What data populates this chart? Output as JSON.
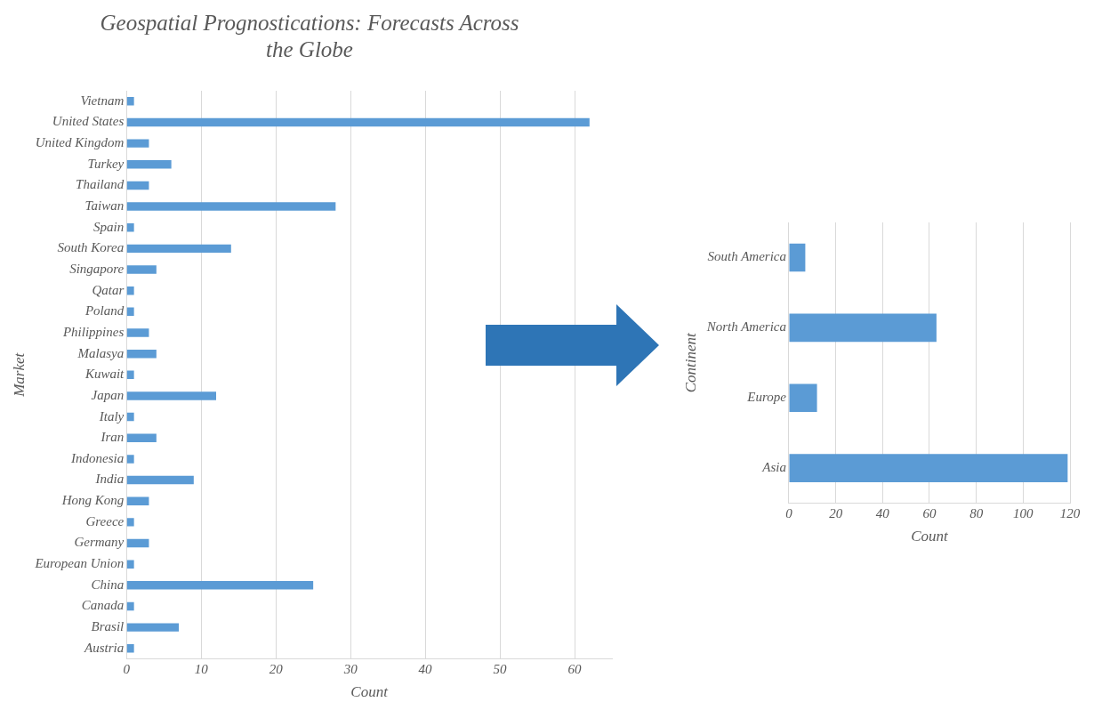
{
  "chart_data": [
    {
      "type": "bar",
      "title": "Geospatial Prognostications: Forecasts Across the Globe",
      "orientation": "horizontal",
      "xlabel": "Count",
      "ylabel": "Market",
      "categories": [
        "Vietnam",
        "United States",
        "United Kingdom",
        "Turkey",
        "Thailand",
        "Taiwan",
        "Spain",
        "South Korea",
        "Singapore",
        "Qatar",
        "Poland",
        "Philippines",
        "Malasya",
        "Kuwait",
        "Japan",
        "Italy",
        "Iran",
        "Indonesia",
        "India",
        "Hong Kong",
        "Greece",
        "Germany",
        "European Union",
        "China",
        "Canada",
        "Brasil",
        "Austria"
      ],
      "values": [
        1,
        62,
        3,
        6,
        3,
        28,
        1,
        14,
        4,
        1,
        1,
        3,
        4,
        1,
        12,
        1,
        4,
        1,
        9,
        3,
        1,
        3,
        1,
        25,
        1,
        7,
        1
      ],
      "color": "#5b9bd5",
      "xlim": [
        0,
        65
      ],
      "xticks": [
        0,
        10,
        20,
        30,
        40,
        50,
        60
      ],
      "grid": "x"
    },
    {
      "type": "bar",
      "orientation": "horizontal",
      "xlabel": "Count",
      "ylabel": "Continent",
      "categories": [
        "South America",
        "North America",
        "Europe",
        "Asia"
      ],
      "values": [
        7,
        63,
        12,
        119
      ],
      "color": "#5b9bd5",
      "xlim": [
        0,
        120
      ],
      "xticks": [
        0,
        20,
        40,
        60,
        80,
        100,
        120
      ],
      "grid": "x"
    }
  ]
}
